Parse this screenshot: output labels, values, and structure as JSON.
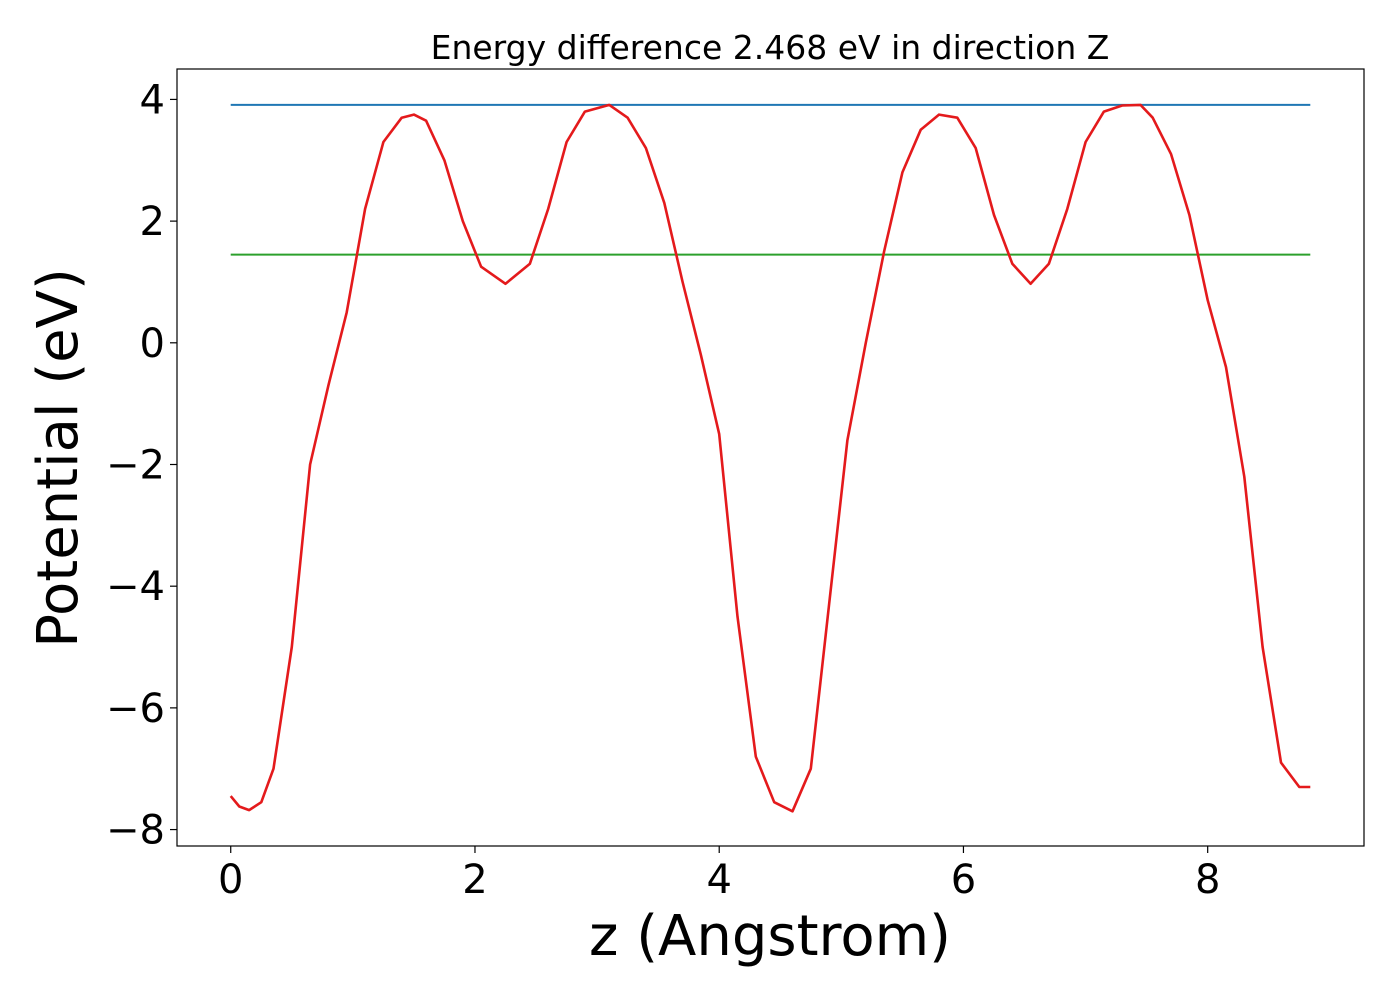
{
  "chart_data": {
    "type": "line",
    "title": "Energy difference 2.468 eV in direction Z",
    "xlabel": "z (Angstrom)",
    "ylabel": "Potential (eV)",
    "xlim": [
      -0.44,
      9.28
    ],
    "ylim": [
      -8.27,
      4.5
    ],
    "xticks": [
      0,
      2,
      4,
      6,
      8
    ],
    "xtick_labels": [
      "0",
      "2",
      "4",
      "6",
      "8"
    ],
    "yticks": [
      4,
      2,
      0,
      -2,
      -4,
      -6,
      -8
    ],
    "ytick_labels": [
      "4",
      "2",
      "0",
      "−2",
      "−4",
      "−6",
      "−8"
    ],
    "grid": false,
    "series": [
      {
        "color": "#1f77b4",
        "x": [
          0,
          8.84
        ],
        "y": [
          3.91,
          3.91
        ]
      },
      {
        "color": "#2ca02c",
        "x": [
          0,
          8.84
        ],
        "y": [
          1.45,
          1.45
        ]
      },
      {
        "color": "#e41a1c",
        "x": [
          0,
          0.07,
          0.15,
          0.25,
          0.35,
          0.5,
          0.65,
          0.8,
          0.95,
          1.1,
          1.25,
          1.4,
          1.5,
          1.6,
          1.75,
          1.9,
          2.05,
          2.25,
          2.45,
          2.6,
          2.75,
          2.9,
          3.1,
          3.25,
          3.4,
          3.55,
          3.7,
          3.85,
          4.0,
          4.15,
          4.3,
          4.45,
          4.6,
          4.75,
          4.9,
          5.05,
          5.2,
          5.35,
          5.5,
          5.65,
          5.8,
          5.95,
          6.1,
          6.25,
          6.4,
          6.55,
          6.7,
          6.85,
          7.0,
          7.15,
          7.3,
          7.45,
          7.55,
          7.7,
          7.85,
          8.0,
          8.15,
          8.3,
          8.45,
          8.6,
          8.75,
          8.84
        ],
        "y": [
          -7.45,
          -7.62,
          -7.68,
          -7.55,
          -7.0,
          -5.0,
          -2.0,
          -0.7,
          0.5,
          2.2,
          3.3,
          3.7,
          3.75,
          3.65,
          3.0,
          2.0,
          1.25,
          0.97,
          1.3,
          2.2,
          3.3,
          3.8,
          3.91,
          3.7,
          3.2,
          2.3,
          1.0,
          -0.2,
          -1.5,
          -4.5,
          -6.8,
          -7.55,
          -7.7,
          -7.0,
          -4.3,
          -1.6,
          0.0,
          1.5,
          2.8,
          3.5,
          3.75,
          3.7,
          3.2,
          2.1,
          1.3,
          0.97,
          1.3,
          2.2,
          3.3,
          3.8,
          3.9,
          3.91,
          3.7,
          3.1,
          2.1,
          0.7,
          -0.4,
          -2.2,
          -5.0,
          -6.9,
          -7.3,
          -7.3
        ]
      }
    ]
  }
}
